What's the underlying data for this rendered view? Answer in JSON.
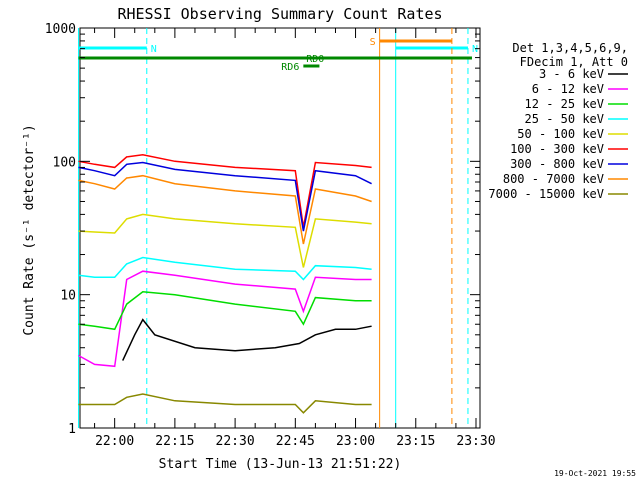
{
  "chart_data": {
    "type": "line",
    "title": "RHESSI Observing Summary Count Rates",
    "xlabel": "Start Time (13-Jun-13 21:51:22)",
    "ylabel": "Count Rate (s⁻¹ detector⁻¹)",
    "y_scale": "log",
    "ylim": [
      1,
      1000
    ],
    "xlim": [
      "21:51:22",
      "23:31:00"
    ],
    "x_ticks": [
      "22:00",
      "22:15",
      "22:30",
      "22:45",
      "23:00",
      "23:15",
      "23:30"
    ],
    "y_ticks": [
      "1",
      "10",
      "100",
      "1000"
    ],
    "legend": {
      "placement": "right",
      "header": [
        "Det 1,3,4,5,6,9,",
        "FDecim 1, Att 0"
      ]
    },
    "grid": false,
    "series": [
      {
        "name": "3 - 6 keV",
        "color": "#000000",
        "x": [
          "21:51",
          "21:55",
          "22:02",
          "22:05",
          "22:07",
          "22:10",
          "22:20",
          "22:30",
          "22:40",
          "22:46",
          "22:50",
          "22:55",
          "23:00",
          "23:04"
        ],
        "y": [
          null,
          null,
          3.2,
          5.0,
          6.5,
          5.0,
          4.0,
          3.8,
          4.0,
          4.3,
          5.0,
          5.5,
          5.5,
          5.8
        ]
      },
      {
        "name": "6 - 12 keV",
        "color": "#ff00ff",
        "x": [
          "21:51",
          "21:55",
          "22:00",
          "22:03",
          "22:07",
          "22:15",
          "22:30",
          "22:45",
          "22:47",
          "22:50",
          "23:00",
          "23:04"
        ],
        "y": [
          3.5,
          3.0,
          2.9,
          13.0,
          15.0,
          14.0,
          12.0,
          11.0,
          7.5,
          13.5,
          13.0,
          13.0
        ]
      },
      {
        "name": "12 - 25 keV",
        "color": "#00dd00",
        "x": [
          "21:51",
          "21:55",
          "22:00",
          "22:03",
          "22:07",
          "22:15",
          "22:30",
          "22:45",
          "22:47",
          "22:50",
          "23:00",
          "23:04"
        ],
        "y": [
          6.0,
          5.8,
          5.5,
          8.5,
          10.5,
          10.0,
          8.5,
          7.5,
          6.0,
          9.5,
          9.0,
          9.0
        ]
      },
      {
        "name": "25 - 50 keV",
        "color": "#00ffff",
        "x": [
          "21:51",
          "21:55",
          "22:00",
          "22:03",
          "22:07",
          "22:15",
          "22:30",
          "22:45",
          "22:47",
          "22:50",
          "23:00",
          "23:04"
        ],
        "y": [
          14.0,
          13.5,
          13.5,
          17.0,
          19.0,
          17.5,
          15.5,
          15.0,
          13.0,
          16.5,
          16.0,
          15.5
        ]
      },
      {
        "name": "50 - 100 keV",
        "color": "#dddd00",
        "x": [
          "21:51",
          "21:55",
          "22:00",
          "22:03",
          "22:07",
          "22:15",
          "22:30",
          "22:45",
          "22:47",
          "22:50",
          "23:00",
          "23:04"
        ],
        "y": [
          30.0,
          29.5,
          29.0,
          37.0,
          40.0,
          37.0,
          34.0,
          32.0,
          16.0,
          37.0,
          35.0,
          34.0
        ]
      },
      {
        "name": "100 - 300 keV",
        "color": "#ff0000",
        "x": [
          "21:51",
          "21:55",
          "22:00",
          "22:03",
          "22:07",
          "22:15",
          "22:30",
          "22:45",
          "22:47",
          "22:50",
          "23:00",
          "23:04"
        ],
        "y": [
          100,
          95,
          90,
          108,
          112,
          100,
          90,
          85,
          32,
          98,
          93,
          90
        ]
      },
      {
        "name": "300 - 800 keV",
        "color": "#0000dd",
        "x": [
          "21:51",
          "21:55",
          "22:00",
          "22:03",
          "22:07",
          "22:15",
          "22:30",
          "22:45",
          "22:47",
          "22:50",
          "23:00",
          "23:04"
        ],
        "y": [
          90,
          85,
          78,
          95,
          98,
          87,
          78,
          72,
          30,
          85,
          78,
          68
        ]
      },
      {
        "name": "800 - 7000 keV",
        "color": "#ff8800",
        "x": [
          "21:51",
          "21:55",
          "22:00",
          "22:03",
          "22:07",
          "22:15",
          "22:30",
          "22:45",
          "22:47",
          "22:50",
          "23:00",
          "23:04"
        ],
        "y": [
          72,
          68,
          62,
          75,
          78,
          68,
          60,
          55,
          24,
          62,
          55,
          50
        ]
      },
      {
        "name": "7000 - 15000 keV",
        "color": "#888800",
        "x": [
          "21:51",
          "21:55",
          "22:00",
          "22:03",
          "22:07",
          "22:15",
          "22:30",
          "22:45",
          "22:47",
          "22:50",
          "23:00",
          "23:04"
        ],
        "y": [
          1.5,
          1.5,
          1.5,
          1.7,
          1.8,
          1.6,
          1.5,
          1.5,
          1.3,
          1.6,
          1.5,
          1.5
        ]
      }
    ],
    "annotations": [
      {
        "label": "N",
        "type": "night",
        "color": "#00ffff",
        "start": "21:51",
        "end": "22:08"
      },
      {
        "label": "N",
        "type": "night",
        "color": "#00ffff",
        "start": "23:10",
        "end": "23:28"
      },
      {
        "label": "S",
        "type": "saa",
        "color": "#ff8800",
        "start": "23:06",
        "end": "23:24"
      },
      {
        "label": "RD0",
        "type": "data",
        "color": "#008800",
        "start": "21:51",
        "end": "23:29"
      },
      {
        "label": "RD6",
        "type": "data",
        "color": "#008800",
        "start": "22:47",
        "end": "22:51"
      }
    ],
    "timestamp": "19-Oct-2021 19:55"
  }
}
